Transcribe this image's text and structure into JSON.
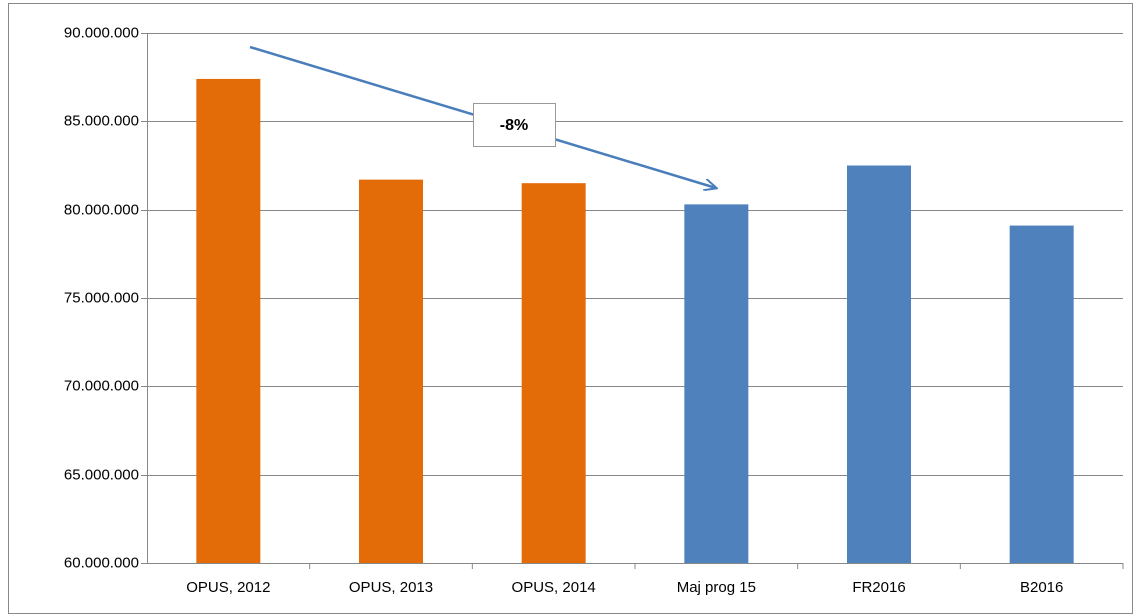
{
  "chart_data": {
    "type": "bar",
    "categories": [
      "OPUS, 2012",
      "OPUS, 2013",
      "OPUS, 2014",
      "Maj prog 15",
      "FR2016",
      "B2016"
    ],
    "values": [
      87400000,
      81700000,
      81500000,
      80300000,
      82500000,
      79100000
    ],
    "colors": [
      "#e36c09",
      "#e36c09",
      "#e36c09",
      "#4f81bd",
      "#4f81bd",
      "#4f81bd"
    ],
    "ylim": [
      60000000,
      90000000
    ],
    "yticks": [
      {
        "value": 60000000,
        "label": "60.000.000"
      },
      {
        "value": 65000000,
        "label": "65.000.000"
      },
      {
        "value": 70000000,
        "label": "70.000.000"
      },
      {
        "value": 75000000,
        "label": "75.000.000"
      },
      {
        "value": 80000000,
        "label": "80.000.000"
      },
      {
        "value": 85000000,
        "label": "85.000.000"
      },
      {
        "value": 90000000,
        "label": "90.000.000"
      }
    ],
    "grid": true,
    "annotation": "-8%"
  }
}
